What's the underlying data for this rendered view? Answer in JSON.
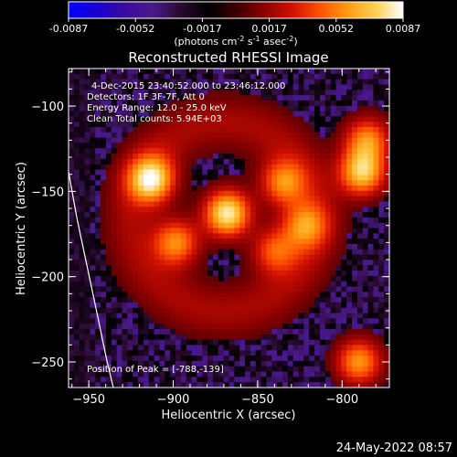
{
  "chart_data": {
    "type": "heatmap",
    "title": "Reconstructed RHESSI Image",
    "xlabel": "Heliocentric X (arcsec)",
    "ylabel": "Heliocentric Y (arcsec)",
    "xlim": [
      -962,
      -772
    ],
    "ylim": [
      -265,
      -78
    ],
    "xticks": [
      -950,
      -900,
      -850,
      -800
    ],
    "yticks": [
      -250,
      -200,
      -150,
      -100
    ],
    "colorbar": {
      "min": -0.0087,
      "max": 0.0087,
      "ticks": [
        "-0.0087",
        "-0.0052",
        "-0.0017",
        "0.0017",
        "0.0052",
        "0.0087"
      ],
      "units_prefix": "(photons cm",
      "units_exp1": "-2",
      "units_mid1": " s",
      "units_exp2": "-1",
      "units_mid2": " asec",
      "units_exp3": "-2",
      "units_suffix": ")",
      "colors": [
        "#0000ff",
        "#1a00d0",
        "#3a0aa0",
        "#4a1a8a",
        "#2a0a30",
        "#000000",
        "#3a0000",
        "#8a0000",
        "#d01000",
        "#ff5000",
        "#ff9a10",
        "#ffd050",
        "#ffffff"
      ]
    },
    "annotations": {
      "time_range": "4-Dec-2015 23:40:52.000 to 23:46:12.000",
      "detectors": "Detectors: 1F 3F-7F, Att 0",
      "energy": "Energy Range: 12.0 - 25.0 keV",
      "method": "Clean     Total counts: 5.94E+03",
      "peak": "Position of Peak = [-788,-139]"
    },
    "sources": [
      {
        "x": -868,
        "y": -163,
        "intensity": 1.0
      },
      {
        "x": -913,
        "y": -143,
        "intensity": 0.9
      },
      {
        "x": -898,
        "y": -180,
        "intensity": 0.65
      },
      {
        "x": -835,
        "y": -145,
        "intensity": 0.6
      },
      {
        "x": -822,
        "y": -170,
        "intensity": 0.55
      },
      {
        "x": -840,
        "y": -185,
        "intensity": 0.5
      },
      {
        "x": -788,
        "y": -139,
        "intensity": 0.85
      },
      {
        "x": -785,
        "y": -120,
        "intensity": 0.65
      },
      {
        "x": -790,
        "y": -250,
        "intensity": 0.7
      }
    ]
  },
  "footer": {
    "date": "24-May-2022 08:57"
  }
}
